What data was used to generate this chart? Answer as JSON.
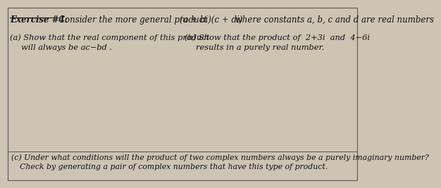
{
  "background_color": "#cdc4b4",
  "title": "Exercise #4:",
  "title_rest": " Consider the more general product ",
  "title_math": "(a + bi)(c + di)",
  "title_end": " where constants a, b, c and d are real numbers",
  "part_a_line1": "(a) Show that the real component of this product",
  "part_a_line2": "will always be ac − bd .",
  "part_b_line1": "(b) Show that the product of 2+3i  and  4−6i",
  "part_b_line2": "results in a purely real number.",
  "part_c_line1": "(c) Under what conditions will the product of two complex numbers always be a purely imaginary number?",
  "part_c_line2": "Check by generating a pair of complex numbers that have this type of product.",
  "fontsize_title": 8.5,
  "fontsize_body": 8.2,
  "fontsize_c": 7.8,
  "text_color": "#111111",
  "line_color": "#555555"
}
